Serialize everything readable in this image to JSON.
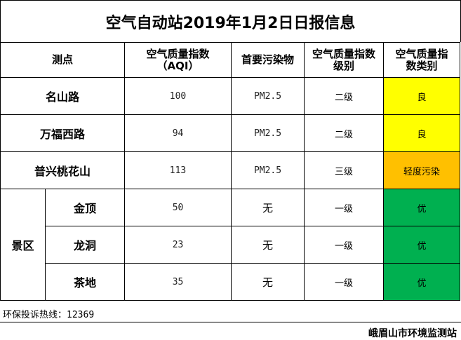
{
  "title": "空气自动站2019年1月2日日报信息",
  "headers": {
    "site": "测点",
    "aqi_line1": "空气质量指数",
    "aqi_line2": "（AQI）",
    "pollutant": "首要污染物",
    "level_line1": "空气质量指数",
    "level_line2": "级别",
    "category_line1": "空气质量指",
    "category_line2": "数类别"
  },
  "rows": [
    {
      "site": "名山路",
      "aqi": "100",
      "pollutant": "PM2.5",
      "level": "二级",
      "category": "良",
      "color": "#ffff00"
    },
    {
      "site": "万福西路",
      "aqi": "94",
      "pollutant": "PM2.5",
      "level": "二级",
      "category": "良",
      "color": "#ffff00"
    },
    {
      "site": "普兴桃花山",
      "aqi": "113",
      "pollutant": "PM2.5",
      "level": "三级",
      "category": "轻度污染",
      "color": "#ffc000"
    }
  ],
  "scenic": {
    "group_label": "景区",
    "rows": [
      {
        "site": "金顶",
        "aqi": "50",
        "pollutant": "无",
        "level": "一级",
        "category": "优",
        "color": "#00b050"
      },
      {
        "site": "龙洞",
        "aqi": "23",
        "pollutant": "无",
        "level": "一级",
        "category": "优",
        "color": "#00b050"
      },
      {
        "site": "茶地",
        "aqi": "35",
        "pollutant": "无",
        "level": "一级",
        "category": "优",
        "color": "#00b050"
      }
    ]
  },
  "hotline_label": "环保投诉热线：",
  "hotline_number": "12369",
  "organization": "峨眉山市环境监测站"
}
